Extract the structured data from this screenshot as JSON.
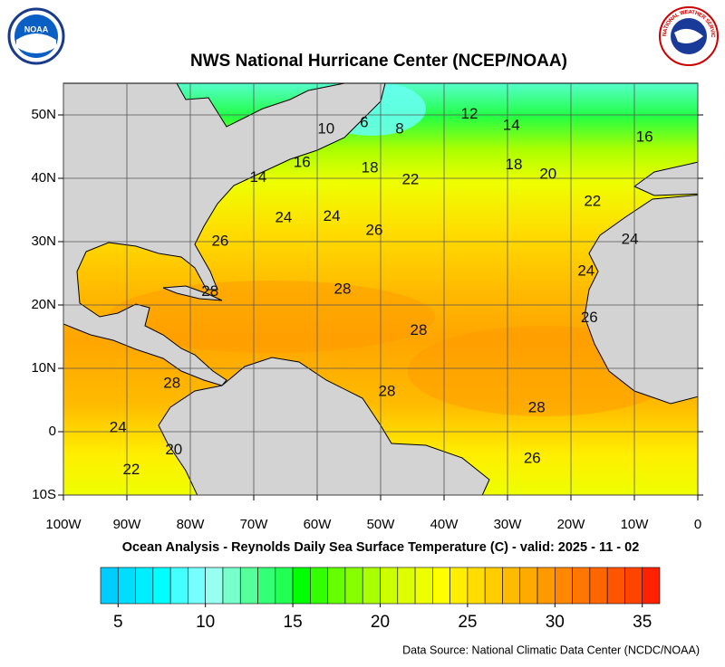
{
  "title": "NWS National Hurricane Center (NCEP/NOAA)",
  "subtitle": "Ocean Analysis - Reynolds Daily Sea Surface Temperature (C) - valid: 2025 - 11 - 02",
  "source": "Data Source: National Climatic Data Center (NCDC/NOAA)",
  "logos": {
    "noaa": "NOAA",
    "nws": "NATIONAL WEATHER SERVICE"
  },
  "map": {
    "lon_lim": [
      -100,
      0
    ],
    "lat_lim": [
      -10,
      55
    ],
    "lon_ticks": [
      {
        "value": -100,
        "label": "100W"
      },
      {
        "value": -90,
        "label": "90W"
      },
      {
        "value": -80,
        "label": "80W"
      },
      {
        "value": -70,
        "label": "70W"
      },
      {
        "value": -60,
        "label": "60W"
      },
      {
        "value": -50,
        "label": "50W"
      },
      {
        "value": -40,
        "label": "40W"
      },
      {
        "value": -30,
        "label": "30W"
      },
      {
        "value": -20,
        "label": "20W"
      },
      {
        "value": -10,
        "label": "10W"
      },
      0
    ],
    "lat_ticks": [
      {
        "value": -10,
        "label": "10S"
      },
      0,
      {
        "value": 10,
        "label": "10N"
      },
      {
        "value": 20,
        "label": "20N"
      },
      {
        "value": 30,
        "label": "30N"
      },
      {
        "value": 40,
        "label": "40N"
      },
      {
        "value": 50,
        "label": "50N"
      }
    ],
    "contour_labels": [
      {
        "lon": -36,
        "lat": 50.1,
        "value": 12
      },
      {
        "lon": -29.4,
        "lat": 48.3,
        "value": 14
      },
      {
        "lon": -8.4,
        "lat": 46.4,
        "value": 16
      },
      {
        "lon": -52.6,
        "lat": 48.7,
        "value": 6
      },
      {
        "lon": -47,
        "lat": 47.7,
        "value": 8
      },
      {
        "lon": -58.6,
        "lat": 47.7,
        "value": 10
      },
      {
        "lon": -62.4,
        "lat": 42.4,
        "value": 16
      },
      {
        "lon": -69.3,
        "lat": 40.1,
        "value": 14
      },
      {
        "lon": -51.7,
        "lat": 41.6,
        "value": 18
      },
      {
        "lon": -45.3,
        "lat": 39.7,
        "value": 22
      },
      {
        "lon": -29,
        "lat": 42.1,
        "value": 18
      },
      {
        "lon": -23.6,
        "lat": 40.6,
        "value": 20
      },
      {
        "lon": -16.6,
        "lat": 36.3,
        "value": 22
      },
      {
        "lon": -65.3,
        "lat": 33.7,
        "value": 24
      },
      {
        "lon": -57.7,
        "lat": 33.9,
        "value": 24
      },
      {
        "lon": -51,
        "lat": 31.7,
        "value": 26
      },
      {
        "lon": -75.3,
        "lat": 30,
        "value": 26
      },
      {
        "lon": -10.7,
        "lat": 30.3,
        "value": 24
      },
      {
        "lon": -17.6,
        "lat": 25.3,
        "value": 24
      },
      {
        "lon": -76.9,
        "lat": 22.1,
        "value": 28
      },
      {
        "lon": -56,
        "lat": 22.4,
        "value": 28
      },
      {
        "lon": -44,
        "lat": 15.9,
        "value": 28
      },
      {
        "lon": -17.1,
        "lat": 17.9,
        "value": 26
      },
      {
        "lon": -82.9,
        "lat": 7.6,
        "value": 28
      },
      {
        "lon": -49,
        "lat": 6.3,
        "value": 28
      },
      {
        "lon": -25.4,
        "lat": 3.7,
        "value": 28
      },
      {
        "lon": -91.4,
        "lat": 0.6,
        "value": 24
      },
      {
        "lon": -82.6,
        "lat": -2.9,
        "value": 20
      },
      {
        "lon": -89.3,
        "lat": -6.1,
        "value": 22
      },
      {
        "lon": -26.1,
        "lat": -4.3,
        "value": 26
      }
    ]
  },
  "colorbar": {
    "lim": [
      4,
      36
    ],
    "ticks": [
      5,
      10,
      15,
      20,
      25,
      30,
      35
    ],
    "colors": [
      "#00ccff",
      "#00ddff",
      "#00eeff",
      "#00ffff",
      "#44ffff",
      "#77ffff",
      "#99ffee",
      "#77ffcc",
      "#55ff99",
      "#33ff77",
      "#22ff55",
      "#00ff00",
      "#33ff00",
      "#66ff00",
      "#88ff00",
      "#aaff00",
      "#ccff00",
      "#ddff00",
      "#eeff00",
      "#ffff00",
      "#ffee00",
      "#ffdd00",
      "#ffcc00",
      "#ffbb00",
      "#ffaa00",
      "#ff9900",
      "#ff8800",
      "#ff7700",
      "#ff6600",
      "#ff5500",
      "#ff4400",
      "#ff2200"
    ]
  }
}
